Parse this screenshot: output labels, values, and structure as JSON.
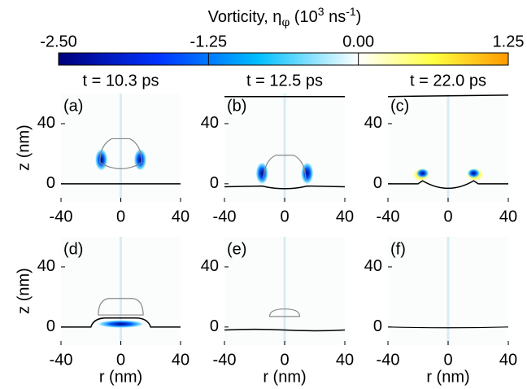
{
  "chart_data": {
    "type": "heatmap",
    "colorbar_label": [
      "Vorticity, η",
      "φ",
      " (10",
      "3",
      " ns",
      "-1",
      ")"
    ],
    "clim": [
      -2.5,
      1.25
    ],
    "cticks": [
      {
        "value": -2.5,
        "label": "-2.50"
      },
      {
        "value": -1.25,
        "label": "-1.25"
      },
      {
        "value": 0,
        "label": "0.00"
      },
      {
        "value": 1.25,
        "label": "1.25"
      }
    ],
    "colormap": [
      "#00007a",
      "#0033ff",
      "#00bfff",
      "#ffffff",
      "#ffff40",
      "#ff9900"
    ],
    "column_titles": [
      "t = 10.3 ps",
      "t = 12.5 ps",
      "t = 22.0 ps"
    ],
    "panels": [
      "(a)",
      "(b)",
      "(c)",
      "(d)",
      "(e)",
      "(f)"
    ],
    "xlabel": "r (nm)",
    "ylabel": "z (nm)",
    "xlim": [
      -40,
      40
    ],
    "ylim": [
      -12,
      60
    ],
    "xticks": [
      -40,
      0,
      40
    ],
    "yticks": [
      0,
      40
    ]
  }
}
